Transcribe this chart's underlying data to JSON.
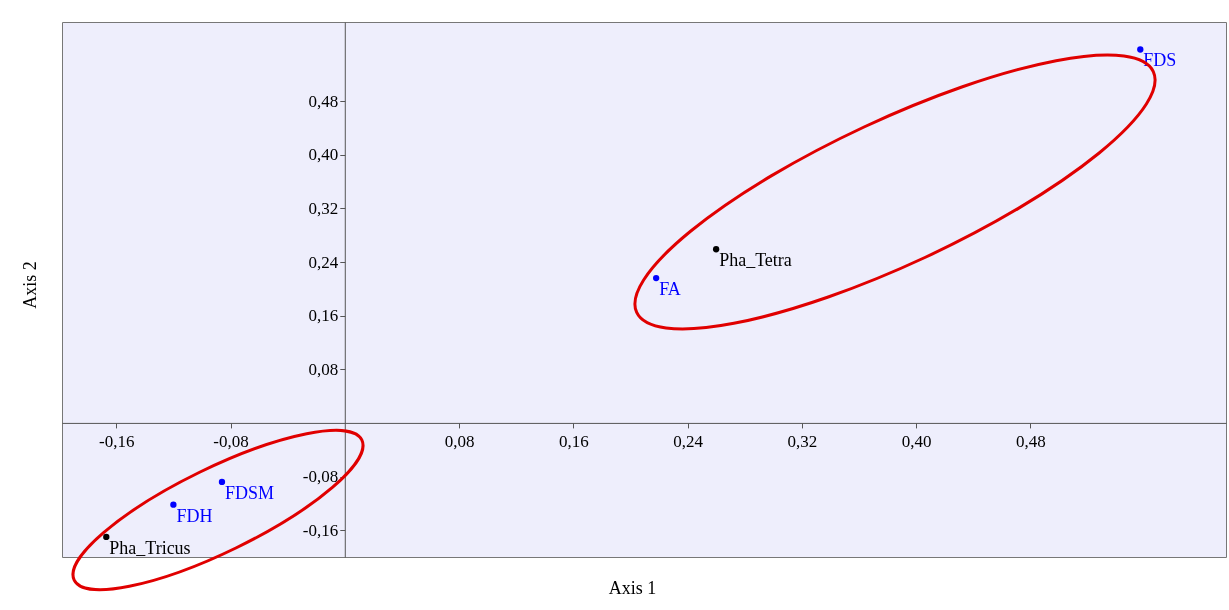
{
  "chart_data": {
    "type": "scatter",
    "xlabel": "Axis 1",
    "ylabel": "Axis 2",
    "xlim": [
      -0.198,
      0.617
    ],
    "ylim": [
      -0.2,
      0.598
    ],
    "xticks": [
      {
        "value": -0.16,
        "label": "-0,16"
      },
      {
        "value": -0.08,
        "label": "-0,08"
      },
      {
        "value": 0.08,
        "label": "0,08"
      },
      {
        "value": 0.16,
        "label": "0,16"
      },
      {
        "value": 0.24,
        "label": "0,24"
      },
      {
        "value": 0.32,
        "label": "0,32"
      },
      {
        "value": 0.4,
        "label": "0,40"
      },
      {
        "value": 0.48,
        "label": "0,48"
      }
    ],
    "yticks": [
      {
        "value": -0.16,
        "label": "-0,16"
      },
      {
        "value": -0.08,
        "label": "-0,08"
      },
      {
        "value": 0.08,
        "label": "0,08"
      },
      {
        "value": 0.16,
        "label": "0,16"
      },
      {
        "value": 0.24,
        "label": "0,24"
      },
      {
        "value": 0.32,
        "label": "0,32"
      },
      {
        "value": 0.4,
        "label": "0,40"
      },
      {
        "value": 0.48,
        "label": "0,48"
      }
    ],
    "grid": false,
    "legend": false,
    "marker": "circle",
    "series": [
      {
        "color": "#0000ff",
        "x": [
          0.557,
          0.218,
          -0.086,
          -0.12
        ],
        "values": [
          0.557,
          0.216,
          -0.088,
          -0.122
        ],
        "value_labels": [
          "FDS",
          "FA",
          "FDSM",
          "FDH"
        ]
      },
      {
        "color": "#000000",
        "x": [
          0.26,
          -0.167
        ],
        "values": [
          0.259,
          -0.17
        ],
        "value_labels": [
          "Pha_Tetra",
          "Pha_Tricus"
        ]
      }
    ]
  }
}
